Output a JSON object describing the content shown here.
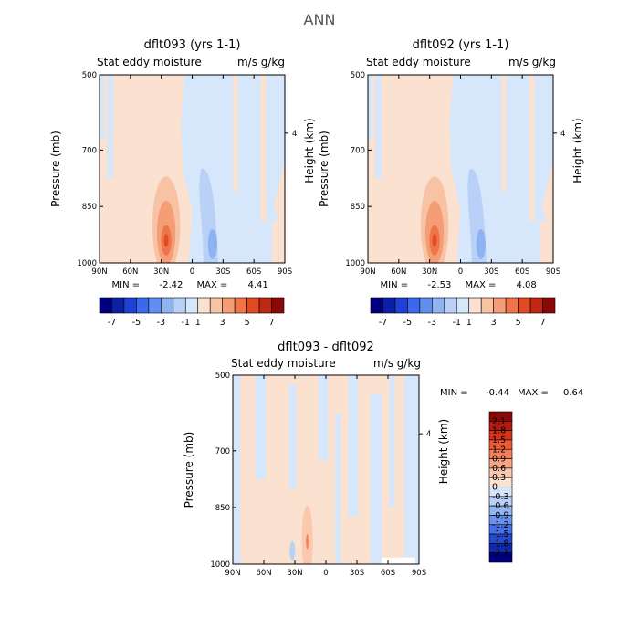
{
  "figure_title": "ANN",
  "colors": {
    "pos_light": "#fbe1cf",
    "neg_light": "#d6e7fb",
    "frame": "#000000"
  },
  "chart_data": [
    {
      "type": "heatmap",
      "title": "dflt093 (yrs 1-1)",
      "variable": "Stat eddy moisture",
      "units": "m/s g/kg",
      "ylabel": "Pressure (mb)",
      "ylabel_right": "Height (km)",
      "x_ticks": [
        "90N",
        "60N",
        "30N",
        "0",
        "30S",
        "60S",
        "90S"
      ],
      "y_ticks": [
        "500",
        "700",
        "850",
        "1000"
      ],
      "y_right_ticks": [
        "4"
      ],
      "ylim": [
        1000,
        500
      ],
      "min_label": "MIN =",
      "min": "-2.42",
      "max_label": "MAX =",
      "max": "4.41",
      "colorbar": {
        "orientation": "horizontal",
        "colors": [
          "#00007f",
          "#0a1fa6",
          "#1f40d6",
          "#3c68ee",
          "#628fef",
          "#8fb2f0",
          "#b9d1f6",
          "#d6e7fb",
          "#fbe1cf",
          "#f8c2a5",
          "#f59d77",
          "#f07449",
          "#e24a24",
          "#c02612",
          "#8c0707"
        ],
        "labels": [
          "-7",
          "-5",
          "-3",
          "-1",
          "1",
          "3",
          "5",
          "7"
        ]
      },
      "field": {
        "background": "pos",
        "neg_regions": [
          "left-edge-strips",
          "upper-right-band",
          "southern-midlatitude-low-level"
        ],
        "features": [
          {
            "label": "subtropical maximum",
            "lat": "25N",
            "pressure": 900,
            "level": "max"
          },
          {
            "label": "tropical minimum",
            "lat": "30S",
            "pressure": 930,
            "level": "min"
          }
        ]
      }
    },
    {
      "type": "heatmap",
      "title": "dflt092 (yrs 1-1)",
      "variable": "Stat eddy moisture",
      "units": "m/s g/kg",
      "ylabel": "Pressure (mb)",
      "ylabel_right": "Height (km)",
      "x_ticks": [
        "90N",
        "60N",
        "30N",
        "0",
        "30S",
        "60S",
        "90S"
      ],
      "y_ticks": [
        "500",
        "700",
        "850",
        "1000"
      ],
      "y_right_ticks": [
        "4"
      ],
      "ylim": [
        1000,
        500
      ],
      "min_label": "MIN =",
      "min": "-2.53",
      "max_label": "MAX =",
      "max": "4.08",
      "colorbar": {
        "orientation": "horizontal",
        "colors": [
          "#00007f",
          "#0a1fa6",
          "#1f40d6",
          "#3c68ee",
          "#628fef",
          "#8fb2f0",
          "#b9d1f6",
          "#d6e7fb",
          "#fbe1cf",
          "#f8c2a5",
          "#f59d77",
          "#f07449",
          "#e24a24",
          "#c02612",
          "#8c0707"
        ],
        "labels": [
          "-7",
          "-5",
          "-3",
          "-1",
          "1",
          "3",
          "5",
          "7"
        ]
      },
      "field": {
        "background": "pos",
        "neg_regions": [
          "left-edge-strips",
          "upper-right-band",
          "southern-midlatitude-low-level"
        ],
        "features": [
          {
            "label": "subtropical maximum",
            "lat": "25N",
            "pressure": 900,
            "level": "max"
          },
          {
            "label": "tropical minimum",
            "lat": "30S",
            "pressure": 930,
            "level": "min"
          }
        ]
      }
    },
    {
      "type": "heatmap",
      "title": "dflt093 - dflt092",
      "variable": "Stat eddy moisture",
      "units": "m/s g/kg",
      "ylabel": "Pressure (mb)",
      "ylabel_right": "Height (km)",
      "x_ticks": [
        "90N",
        "60N",
        "30N",
        "0",
        "30S",
        "60S",
        "90S"
      ],
      "y_ticks": [
        "500",
        "700",
        "850",
        "1000"
      ],
      "y_right_ticks": [
        "4"
      ],
      "ylim": [
        1000,
        500
      ],
      "min_label": "MIN =",
      "min": "-0.44",
      "max_label": "MAX =",
      "max": "0.64",
      "colorbar": {
        "orientation": "vertical",
        "colors": [
          "#8c0707",
          "#b41a0e",
          "#d63419",
          "#ef5a36",
          "#f57f58",
          "#f8a582",
          "#fbc8ad",
          "#fbe1cf",
          "#d6e7fb",
          "#b9d1f6",
          "#92b5f1",
          "#6a93ef",
          "#4670ea",
          "#2448d0",
          "#1128a8",
          "#00007f"
        ],
        "labels": [
          "2.1",
          "1.8",
          "1.5",
          "1.2",
          "0.9",
          "0.6",
          "0.3",
          "0",
          "-0.3",
          "-0.6",
          "-0.9",
          "-1.2",
          "-1.5",
          "-1.8",
          "-2.1"
        ]
      },
      "field": {
        "background": "mixed",
        "features": [
          {
            "label": "difference maximum",
            "lat": "20N",
            "pressure": 900,
            "level": "max"
          }
        ]
      }
    }
  ]
}
